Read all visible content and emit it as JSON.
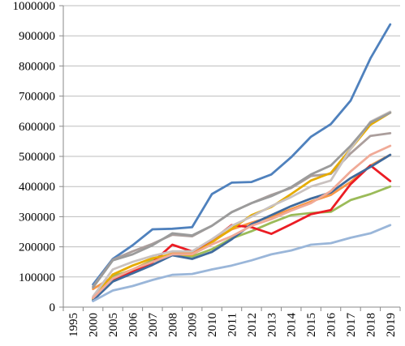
{
  "chart_data": {
    "type": "line",
    "title": "",
    "xlabel": "",
    "ylabel": "",
    "x": [
      "1995",
      "2000",
      "2005",
      "2006",
      "2007",
      "2008",
      "2009",
      "2010",
      "2011",
      "2012",
      "2013",
      "2014",
      "2015",
      "2016",
      "2017",
      "2018",
      "2019"
    ],
    "ylim": [
      0,
      1000000
    ],
    "yticks": [
      "0",
      "100000",
      "200000",
      "300000",
      "400000",
      "500000",
      "600000",
      "700000",
      "800000",
      "900000",
      "1000000"
    ],
    "grid": "horizontal",
    "legend": "none",
    "series": [
      {
        "color": "#4f81bd",
        "values": [
          null,
          75000,
          160000,
          205000,
          258000,
          260000,
          265000,
          375000,
          413000,
          415000,
          440000,
          497000,
          565000,
          607000,
          685000,
          825000,
          938000
        ]
      },
      {
        "color": "#f79646",
        "values": [
          null,
          60000,
          100000,
          125000,
          155000,
          178000,
          180000,
          218000,
          258000,
          280000,
          300000,
          325000,
          350000,
          372000,
          415000,
          470000,
          505000
        ]
      },
      {
        "color": "#9bbb59",
        "values": [
          null,
          25000,
          103000,
          122000,
          155000,
          172000,
          168000,
          192000,
          228000,
          252000,
          280000,
          305000,
          312000,
          316000,
          355000,
          375000,
          400000
        ]
      },
      {
        "color": "#eb1c24",
        "values": [
          null,
          30000,
          90000,
          117000,
          148000,
          207000,
          185000,
          222000,
          272000,
          265000,
          243000,
          275000,
          308000,
          322000,
          408000,
          470000,
          418000
        ]
      },
      {
        "color": "#ab9e9c",
        "values": [
          null,
          68000,
          157000,
          185000,
          210000,
          240000,
          235000,
          270000,
          315000,
          345000,
          372000,
          395000,
          435000,
          442000,
          510000,
          568000,
          577000
        ]
      },
      {
        "color": "#e6ac00",
        "values": [
          null,
          28000,
          108000,
          138000,
          162000,
          175000,
          173000,
          215000,
          260000,
          305000,
          332000,
          375000,
          420000,
          445000,
          525000,
          605000,
          645000
        ]
      },
      {
        "color": "#3f6a9c",
        "values": [
          null,
          22000,
          85000,
          112000,
          140000,
          172000,
          160000,
          183000,
          225000,
          275000,
          305000,
          335000,
          360000,
          380000,
          428000,
          465000,
          505000
        ]
      },
      {
        "color": "#c9c2c0",
        "values": [
          null,
          35000,
          125000,
          150000,
          170000,
          185000,
          185000,
          225000,
          270000,
          300000,
          335000,
          365000,
          400000,
          420000,
          525000,
          615000,
          648000
        ]
      },
      {
        "color": "#f0aa97",
        "values": [
          null,
          30000,
          95000,
          125000,
          150000,
          175000,
          175000,
          208000,
          235000,
          270000,
          292000,
          320000,
          345000,
          385000,
          450000,
          505000,
          535000
        ]
      },
      {
        "color": "#9ab6d9",
        "values": [
          null,
          20000,
          55000,
          70000,
          90000,
          107000,
          110000,
          125000,
          138000,
          155000,
          175000,
          188000,
          207000,
          212000,
          230000,
          245000,
          272000
        ]
      },
      {
        "color": "#9b9b9b",
        "values": [
          null,
          65000,
          155000,
          175000,
          205000,
          245000,
          238000,
          270000,
          315000,
          345000,
          368000,
          398000,
          440000,
          470000,
          535000,
          612000,
          645000
        ]
      }
    ]
  }
}
